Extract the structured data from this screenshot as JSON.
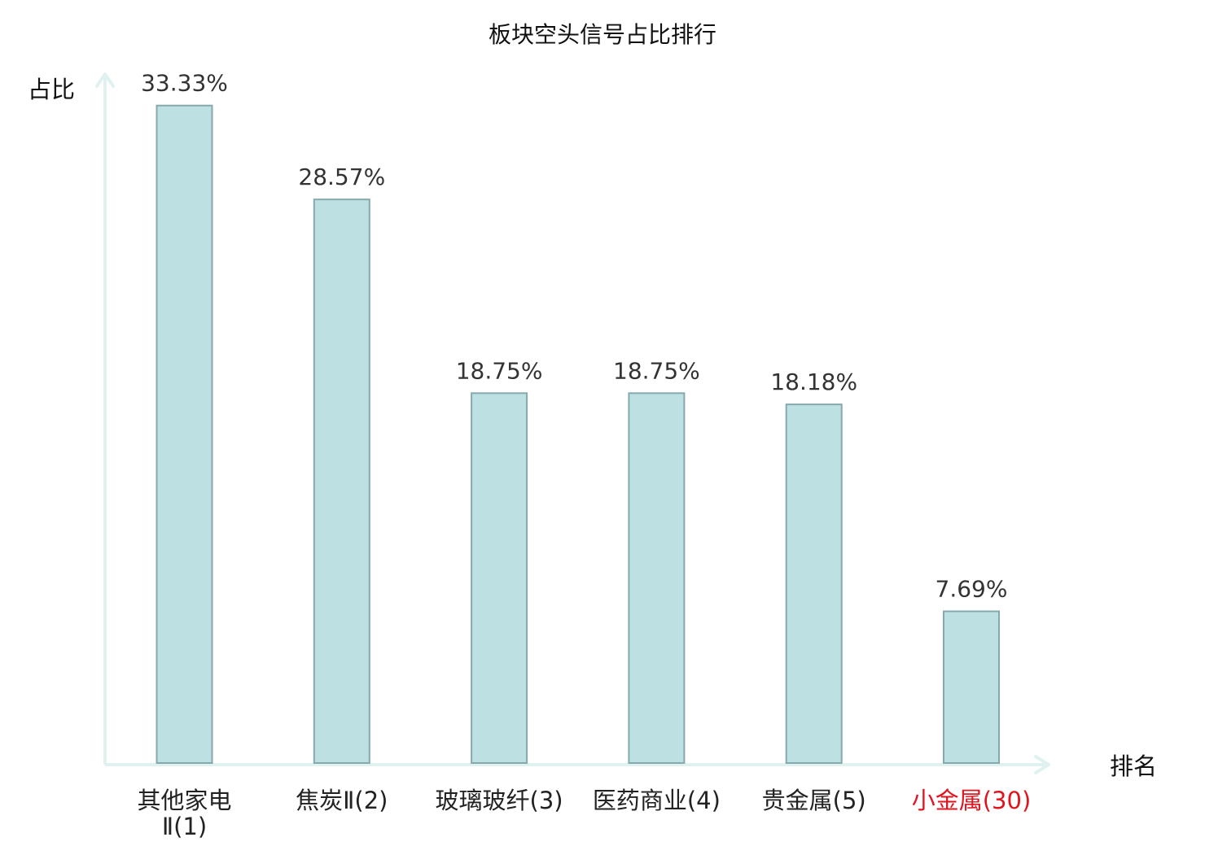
{
  "chart_data": {
    "type": "bar",
    "title": "板块空头信号占比排行",
    "xlabel": "排名",
    "ylabel": "占比",
    "categories": [
      {
        "name": "其他家电Ⅱ",
        "rank": "(1)"
      },
      {
        "name": "焦炭Ⅱ",
        "rank": "(2)"
      },
      {
        "name": "玻璃玻纤",
        "rank": "(3)"
      },
      {
        "name": "医药商业",
        "rank": "(4)"
      },
      {
        "name": "贵金属",
        "rank": "(5)"
      },
      {
        "name": "小金属",
        "rank": "(30)",
        "highlight": true
      }
    ],
    "values": [
      33.33,
      28.57,
      18.75,
      18.75,
      18.18,
      7.69
    ],
    "value_labels": [
      "33.33%",
      "28.57%",
      "18.75%",
      "18.75%",
      "18.18%",
      "7.69%"
    ],
    "ylim": [
      0,
      35
    ],
    "grid": false,
    "colors": {
      "bar_fill": "#bde0e3",
      "bar_stroke": "#86a9ad",
      "axis": "#dff2f0",
      "text": "#222222",
      "value_label": "#333333",
      "highlight": "#e0141e"
    }
  }
}
